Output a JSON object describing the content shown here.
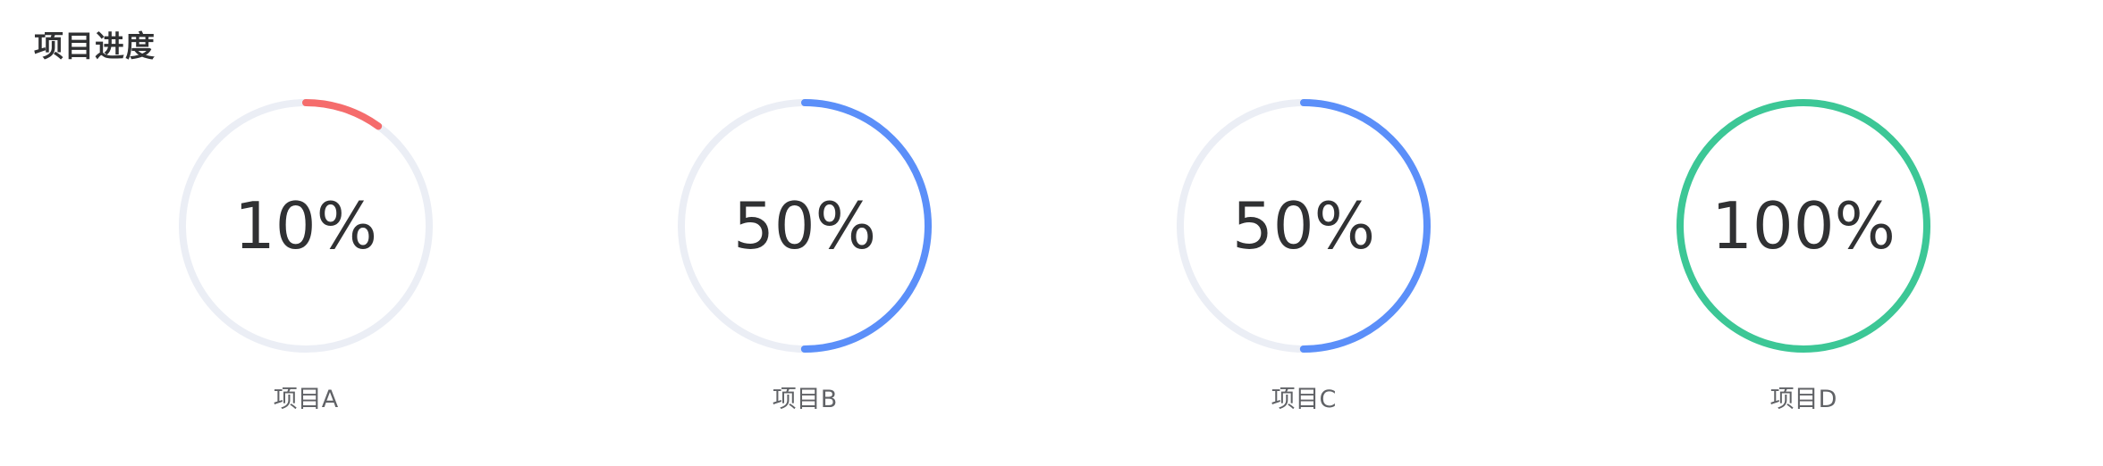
{
  "panel": {
    "title": "项目进度"
  },
  "projects": [
    {
      "name": "项目A",
      "percent_label": "10%",
      "progress": 0.1,
      "color": "#f56c6c"
    },
    {
      "name": "项目B",
      "percent_label": "50%",
      "progress": 0.5,
      "color": "#5b8ff9"
    },
    {
      "name": "项目C",
      "percent_label": "50%",
      "progress": 0.5,
      "color": "#5b8ff9"
    },
    {
      "name": "项目D",
      "percent_label": "100%",
      "progress": 1.0,
      "color": "#3cc796"
    }
  ],
  "colors": {
    "track": "#ebeef5"
  }
}
